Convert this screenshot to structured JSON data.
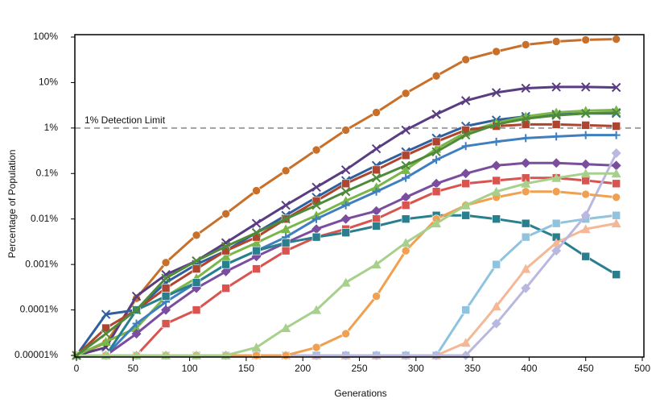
{
  "chart_data": {
    "type": "line",
    "log_scale_y": true,
    "xlabel": "Generations",
    "ylabel": "Percentage of Population",
    "x": [
      0,
      26,
      53,
      79,
      106,
      132,
      159,
      185,
      212,
      238,
      265,
      291,
      318,
      344,
      371,
      397,
      424,
      450,
      477
    ],
    "xlim": [
      0,
      500
    ],
    "xticks": [
      0,
      50,
      100,
      150,
      200,
      250,
      300,
      350,
      400,
      450,
      500
    ],
    "ylim": [
      1e-05,
      100
    ],
    "yticks": [
      {
        "value": 1e-05,
        "label": "0.00001%"
      },
      {
        "value": 0.0001,
        "label": "0.0001%"
      },
      {
        "value": 0.001,
        "label": "0.001%"
      },
      {
        "value": 0.01,
        "label": "0.01%"
      },
      {
        "value": 0.1,
        "label": "0.1%"
      },
      {
        "value": 1,
        "label": "1%"
      },
      {
        "value": 10,
        "label": "10%"
      },
      {
        "value": 100,
        "label": "100%"
      }
    ],
    "threshold": {
      "value": 1,
      "label": "1% Detection Limit",
      "color": "#a0a0a0"
    },
    "series": [
      {
        "color": "#c8702a",
        "marker": "circle",
        "values": [
          1e-05,
          1.9e-05,
          0.00018,
          0.0011,
          0.0044,
          0.013,
          0.042,
          0.115,
          0.33,
          0.9,
          2.2,
          5.8,
          14,
          32,
          48,
          68,
          80,
          87,
          90
        ]
      },
      {
        "color": "#5a3c82",
        "marker": "x",
        "values": [
          1e-05,
          1.5e-05,
          0.0002,
          0.0006,
          0.0012,
          0.003,
          0.008,
          0.02,
          0.05,
          0.12,
          0.35,
          0.9,
          2,
          4,
          6,
          7.5,
          8,
          8,
          7.8
        ]
      },
      {
        "color": "#2f5f9e",
        "marker": "x",
        "values": [
          1e-05,
          8e-05,
          0.0001,
          0.0004,
          0.001,
          0.002,
          0.005,
          0.012,
          0.03,
          0.07,
          0.15,
          0.3,
          0.6,
          1.1,
          1.5,
          1.8,
          2,
          2.1,
          2.1
        ]
      },
      {
        "color": "#7ab648",
        "marker": "triangle",
        "values": [
          1e-05,
          2e-05,
          4e-05,
          0.0002,
          0.0005,
          0.0015,
          0.003,
          0.006,
          0.012,
          0.025,
          0.05,
          0.12,
          0.35,
          0.8,
          1.3,
          1.8,
          2.2,
          2.4,
          2.5
        ]
      },
      {
        "color": "#b0452f",
        "marker": "square",
        "values": [
          1e-05,
          4e-05,
          0.0001,
          0.0003,
          0.0008,
          0.002,
          0.004,
          0.01,
          0.025,
          0.06,
          0.12,
          0.25,
          0.5,
          0.9,
          1.1,
          1.2,
          1.2,
          1.15,
          1.1
        ]
      },
      {
        "color": "#3f7fc0",
        "marker": "plus",
        "values": [
          1e-05,
          1e-05,
          5e-05,
          0.00015,
          0.0004,
          0.001,
          0.002,
          0.004,
          0.01,
          0.02,
          0.04,
          0.08,
          0.2,
          0.4,
          0.5,
          0.6,
          0.65,
          0.7,
          0.7
        ]
      },
      {
        "color": "#7b4d9e",
        "marker": "diamond",
        "values": [
          1e-05,
          1e-05,
          3e-05,
          0.0001,
          0.0003,
          0.0007,
          0.0015,
          0.003,
          0.006,
          0.01,
          0.015,
          0.03,
          0.06,
          0.1,
          0.15,
          0.17,
          0.17,
          0.16,
          0.15
        ]
      },
      {
        "color": "#d9534f",
        "marker": "square",
        "values": [
          1e-05,
          1e-05,
          1e-05,
          5e-05,
          0.0001,
          0.0003,
          0.0008,
          0.002,
          0.004,
          0.006,
          0.01,
          0.02,
          0.04,
          0.06,
          0.07,
          0.08,
          0.08,
          0.07,
          0.06
        ]
      },
      {
        "color": "#2a7f8f",
        "marker": "square",
        "values": [
          1e-05,
          1e-05,
          0.0001,
          0.0002,
          0.0004,
          0.001,
          0.002,
          0.003,
          0.004,
          0.005,
          0.007,
          0.01,
          0.012,
          0.012,
          0.01,
          0.008,
          0.004,
          0.0015,
          0.0006
        ]
      },
      {
        "color": "#8fc3de",
        "marker": "square",
        "values": [
          1e-05,
          1e-05,
          1e-05,
          1e-05,
          1e-05,
          1e-05,
          1e-05,
          1e-05,
          1e-05,
          1e-05,
          1e-05,
          1e-05,
          1e-05,
          0.0001,
          0.001,
          0.004,
          0.008,
          0.01,
          0.012
        ]
      },
      {
        "color": "#f4b896",
        "marker": "triangle",
        "values": [
          1e-05,
          1e-05,
          1e-05,
          1e-05,
          1e-05,
          1e-05,
          1e-05,
          1e-05,
          1e-05,
          1e-05,
          1e-05,
          1e-05,
          1e-05,
          1.9e-05,
          0.00012,
          0.0008,
          0.003,
          0.006,
          0.008
        ]
      },
      {
        "color": "#b8b8e0",
        "marker": "diamond",
        "values": [
          1e-05,
          1e-05,
          1e-05,
          1e-05,
          1e-05,
          1e-05,
          1e-05,
          1e-05,
          1e-05,
          1e-05,
          1e-05,
          1e-05,
          1e-05,
          1e-05,
          5e-05,
          0.0003,
          0.002,
          0.012,
          0.28
        ]
      },
      {
        "color": "#f0a050",
        "marker": "circle",
        "values": [
          1e-05,
          1e-05,
          1e-05,
          1e-05,
          1e-05,
          1e-05,
          1e-05,
          1e-05,
          1.5e-05,
          3e-05,
          0.0002,
          0.002,
          0.01,
          0.02,
          0.03,
          0.04,
          0.04,
          0.035,
          0.03
        ]
      },
      {
        "color": "#a8d08d",
        "marker": "triangle",
        "values": [
          1e-05,
          1e-05,
          1e-05,
          1e-05,
          1e-05,
          1e-05,
          1.5e-05,
          4e-05,
          0.0001,
          0.0004,
          0.001,
          0.003,
          0.008,
          0.02,
          0.04,
          0.06,
          0.08,
          0.1,
          0.1
        ]
      },
      {
        "color": "#4f8a3a",
        "marker": "x",
        "values": [
          1e-05,
          3e-05,
          0.0001,
          0.0005,
          0.0012,
          0.0025,
          0.005,
          0.01,
          0.02,
          0.04,
          0.08,
          0.15,
          0.3,
          0.7,
          1.2,
          1.6,
          1.9,
          2.1,
          2.2
        ]
      }
    ]
  }
}
